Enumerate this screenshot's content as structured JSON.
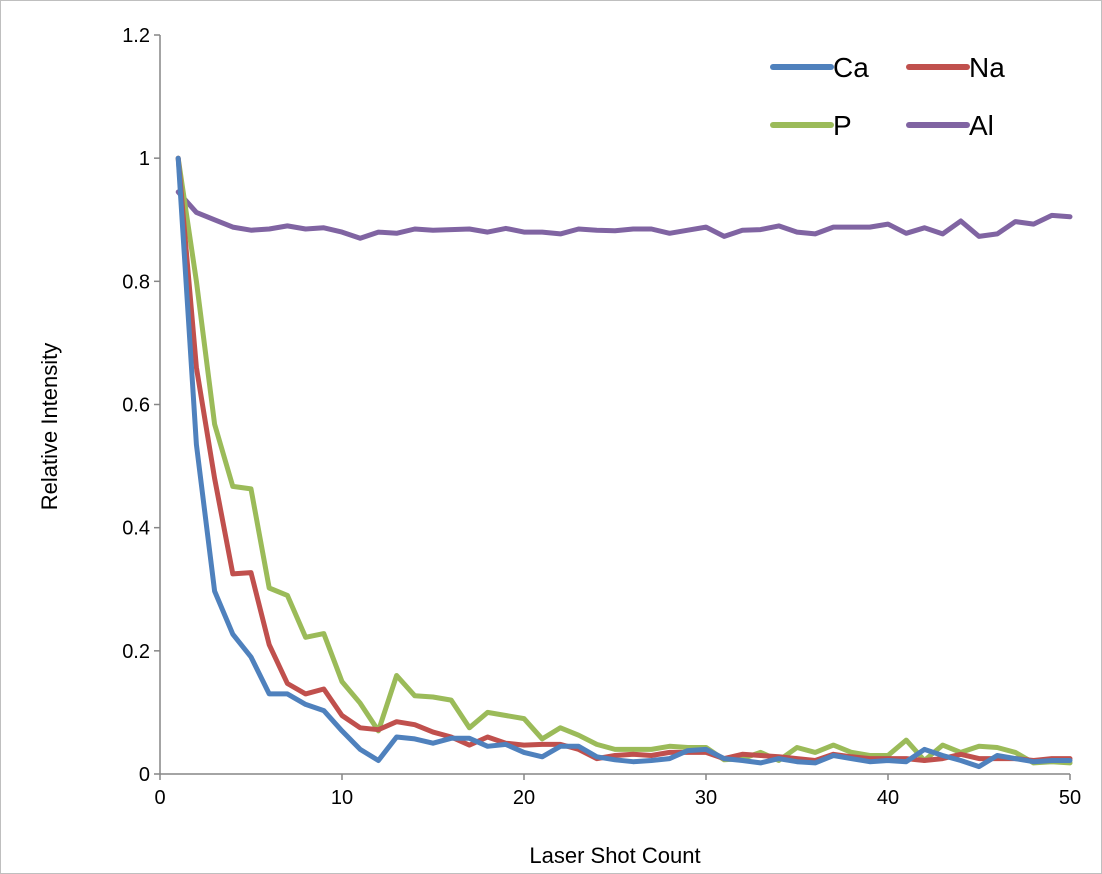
{
  "chart_data": {
    "type": "line",
    "title": "",
    "xlabel": "Laser Shot Count",
    "ylabel": "Relative Intensity",
    "xlim": [
      0,
      50
    ],
    "ylim": [
      0,
      1.2
    ],
    "xticks": [
      0,
      10,
      20,
      30,
      40,
      50
    ],
    "yticks": [
      0,
      0.2,
      0.4,
      0.6,
      0.8,
      1,
      1.2
    ],
    "xtick_labels": [
      "0",
      "10",
      "20",
      "30",
      "40",
      "50"
    ],
    "ytick_labels": [
      "0",
      "0.2",
      "0.4",
      "0.6",
      "0.8",
      "1",
      "1.2"
    ],
    "grid": false,
    "legend_position": "top-right",
    "x": [
      1,
      2,
      3,
      4,
      5,
      6,
      7,
      8,
      9,
      10,
      11,
      12,
      13,
      14,
      15,
      16,
      17,
      18,
      19,
      20,
      21,
      22,
      23,
      24,
      25,
      26,
      27,
      28,
      29,
      30,
      31,
      32,
      33,
      34,
      35,
      36,
      37,
      38,
      39,
      40,
      41,
      42,
      43,
      44,
      45,
      46,
      47,
      48,
      49,
      50
    ],
    "series": [
      {
        "name": "Ca",
        "color": "#4f81bd",
        "values": [
          1.0,
          0.535,
          0.297,
          0.227,
          0.19,
          0.13,
          0.13,
          0.113,
          0.103,
          0.07,
          0.04,
          0.022,
          0.06,
          0.057,
          0.05,
          0.058,
          0.058,
          0.045,
          0.048,
          0.035,
          0.028,
          0.045,
          0.045,
          0.028,
          0.023,
          0.02,
          0.022,
          0.025,
          0.038,
          0.04,
          0.025,
          0.022,
          0.018,
          0.025,
          0.02,
          0.018,
          0.03,
          0.025,
          0.02,
          0.022,
          0.02,
          0.04,
          0.03,
          0.022,
          0.012,
          0.03,
          0.025,
          0.02,
          0.022,
          0.022
        ]
      },
      {
        "name": "Na",
        "color": "#c0504d",
        "values": [
          1.0,
          0.66,
          0.48,
          0.325,
          0.327,
          0.21,
          0.147,
          0.13,
          0.138,
          0.095,
          0.075,
          0.072,
          0.085,
          0.08,
          0.068,
          0.06,
          0.047,
          0.06,
          0.05,
          0.047,
          0.048,
          0.048,
          0.04,
          0.025,
          0.03,
          0.032,
          0.03,
          0.035,
          0.035,
          0.035,
          0.025,
          0.032,
          0.03,
          0.028,
          0.025,
          0.022,
          0.032,
          0.028,
          0.025,
          0.025,
          0.025,
          0.022,
          0.025,
          0.032,
          0.025,
          0.025,
          0.025,
          0.022,
          0.025,
          0.025
        ]
      },
      {
        "name": "P",
        "color": "#9bbb59",
        "values": [
          1.0,
          0.8,
          0.568,
          0.467,
          0.463,
          0.302,
          0.29,
          0.222,
          0.228,
          0.15,
          0.115,
          0.07,
          0.16,
          0.127,
          0.125,
          0.12,
          0.075,
          0.1,
          0.095,
          0.09,
          0.057,
          0.075,
          0.063,
          0.048,
          0.04,
          0.04,
          0.04,
          0.045,
          0.043,
          0.043,
          0.023,
          0.025,
          0.035,
          0.022,
          0.043,
          0.035,
          0.047,
          0.035,
          0.03,
          0.03,
          0.055,
          0.022,
          0.047,
          0.035,
          0.045,
          0.043,
          0.035,
          0.018,
          0.02,
          0.018
        ]
      },
      {
        "name": "Al",
        "color": "#8064a2",
        "values": [
          0.945,
          0.912,
          0.9,
          0.888,
          0.883,
          0.885,
          0.89,
          0.885,
          0.887,
          0.88,
          0.87,
          0.88,
          0.878,
          0.885,
          0.883,
          0.884,
          0.885,
          0.88,
          0.886,
          0.88,
          0.88,
          0.877,
          0.885,
          0.883,
          0.882,
          0.885,
          0.885,
          0.878,
          0.883,
          0.888,
          0.873,
          0.883,
          0.884,
          0.89,
          0.88,
          0.877,
          0.888,
          0.888,
          0.888,
          0.893,
          0.878,
          0.887,
          0.877,
          0.898,
          0.873,
          0.877,
          0.897,
          0.893,
          0.907,
          0.905
        ]
      }
    ]
  }
}
